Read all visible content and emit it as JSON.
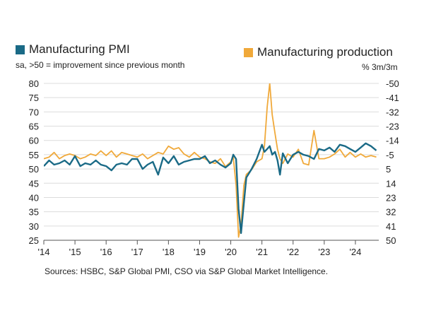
{
  "legend": {
    "left": {
      "label": "Manufacturing PMI",
      "color": "#1a6a86",
      "subtitle": "sa, >50 = improvement since previous month"
    },
    "right": {
      "label": "Manufacturing production",
      "color": "#f0a93a",
      "subtitle": "% 3m/3m"
    }
  },
  "sources": "Sources: HSBC, S&P Global PMI, CSO via S&P Global Market Intelligence.",
  "chart_data": {
    "type": "line",
    "title": "",
    "x_axis": {
      "min": 2014.0,
      "max": 2024.75,
      "tick_labels": [
        "'14",
        "'15",
        "'16",
        "'17",
        "'18",
        "'19",
        "'20",
        "'21",
        "'22",
        "'23",
        "'24"
      ],
      "tick_values": [
        2014,
        2015,
        2016,
        2017,
        2018,
        2019,
        2020,
        2021,
        2022,
        2023,
        2024
      ]
    },
    "y_left": {
      "min": 25,
      "max": 80,
      "ticks": [
        25,
        30,
        35,
        40,
        45,
        50,
        55,
        60,
        65,
        70,
        75,
        80
      ]
    },
    "y_right": {
      "min": -50,
      "max": 50,
      "ticks": [
        "50",
        "41",
        "32",
        "23",
        "14",
        "5",
        "-5",
        "-14",
        "-23",
        "-32",
        "-41",
        "-50"
      ]
    },
    "grid": true,
    "series": [
      {
        "name": "Manufacturing PMI",
        "axis": "left",
        "color": "#1a6a86",
        "points": [
          [
            2014.0,
            51.0
          ],
          [
            2014.17,
            53.0
          ],
          [
            2014.33,
            51.5
          ],
          [
            2014.5,
            52.0
          ],
          [
            2014.67,
            53.0
          ],
          [
            2014.83,
            51.5
          ],
          [
            2015.0,
            54.5
          ],
          [
            2015.17,
            51.0
          ],
          [
            2015.33,
            52.0
          ],
          [
            2015.5,
            51.5
          ],
          [
            2015.67,
            53.0
          ],
          [
            2015.83,
            51.5
          ],
          [
            2016.0,
            51.0
          ],
          [
            2016.17,
            49.5
          ],
          [
            2016.33,
            51.5
          ],
          [
            2016.5,
            52.0
          ],
          [
            2016.67,
            51.5
          ],
          [
            2016.83,
            53.5
          ],
          [
            2017.0,
            53.5
          ],
          [
            2017.17,
            50.0
          ],
          [
            2017.33,
            51.5
          ],
          [
            2017.5,
            52.5
          ],
          [
            2017.67,
            48.0
          ],
          [
            2017.83,
            54.0
          ],
          [
            2018.0,
            52.0
          ],
          [
            2018.17,
            54.5
          ],
          [
            2018.33,
            51.5
          ],
          [
            2018.5,
            52.5
          ],
          [
            2018.67,
            53.0
          ],
          [
            2018.83,
            53.5
          ],
          [
            2019.0,
            53.5
          ],
          [
            2019.17,
            54.5
          ],
          [
            2019.33,
            52.0
          ],
          [
            2019.5,
            53.0
          ],
          [
            2019.67,
            51.5
          ],
          [
            2019.83,
            50.5
          ],
          [
            2020.0,
            52.0
          ],
          [
            2020.08,
            55.0
          ],
          [
            2020.17,
            53.5
          ],
          [
            2020.25,
            36.0
          ],
          [
            2020.33,
            27.5
          ],
          [
            2020.42,
            38.0
          ],
          [
            2020.5,
            47.0
          ],
          [
            2020.67,
            50.0
          ],
          [
            2020.83,
            53.5
          ],
          [
            2021.0,
            58.5
          ],
          [
            2021.08,
            56.0
          ],
          [
            2021.17,
            57.0
          ],
          [
            2021.25,
            58.0
          ],
          [
            2021.33,
            55.0
          ],
          [
            2021.42,
            56.0
          ],
          [
            2021.5,
            53.0
          ],
          [
            2021.58,
            48.0
          ],
          [
            2021.67,
            55.5
          ],
          [
            2021.83,
            52.0
          ],
          [
            2022.0,
            55.0
          ],
          [
            2022.17,
            56.0
          ],
          [
            2022.33,
            55.0
          ],
          [
            2022.5,
            54.5
          ],
          [
            2022.67,
            53.5
          ],
          [
            2022.83,
            57.0
          ],
          [
            2023.0,
            56.5
          ],
          [
            2023.17,
            57.5
          ],
          [
            2023.33,
            56.0
          ],
          [
            2023.5,
            58.5
          ],
          [
            2023.67,
            58.0
          ],
          [
            2023.83,
            57.0
          ],
          [
            2024.0,
            56.0
          ],
          [
            2024.17,
            57.5
          ],
          [
            2024.33,
            59.0
          ],
          [
            2024.5,
            58.0
          ],
          [
            2024.67,
            56.5
          ]
        ]
      },
      {
        "name": "Manufacturing production",
        "axis": "right",
        "color": "#f0a93a",
        "points": [
          [
            2014.0,
            2
          ],
          [
            2014.17,
            3
          ],
          [
            2014.33,
            6
          ],
          [
            2014.5,
            2
          ],
          [
            2014.67,
            4
          ],
          [
            2014.83,
            5
          ],
          [
            2015.0,
            4
          ],
          [
            2015.17,
            2
          ],
          [
            2015.33,
            3
          ],
          [
            2015.5,
            5
          ],
          [
            2015.67,
            4
          ],
          [
            2015.83,
            7
          ],
          [
            2016.0,
            4
          ],
          [
            2016.17,
            7
          ],
          [
            2016.33,
            3
          ],
          [
            2016.5,
            6
          ],
          [
            2016.67,
            5
          ],
          [
            2016.83,
            4
          ],
          [
            2017.0,
            3
          ],
          [
            2017.17,
            5
          ],
          [
            2017.33,
            2
          ],
          [
            2017.5,
            4
          ],
          [
            2017.67,
            6
          ],
          [
            2017.83,
            5
          ],
          [
            2018.0,
            10
          ],
          [
            2018.17,
            8
          ],
          [
            2018.33,
            9
          ],
          [
            2018.5,
            5
          ],
          [
            2018.67,
            3
          ],
          [
            2018.83,
            6
          ],
          [
            2019.0,
            3
          ],
          [
            2019.17,
            2
          ],
          [
            2019.33,
            0
          ],
          [
            2019.5,
            -1
          ],
          [
            2019.67,
            2
          ],
          [
            2019.83,
            -3
          ],
          [
            2020.0,
            0
          ],
          [
            2020.08,
            3
          ],
          [
            2020.17,
            -15
          ],
          [
            2020.25,
            -48
          ],
          [
            2020.33,
            -40
          ],
          [
            2020.42,
            -15
          ],
          [
            2020.5,
            -8
          ],
          [
            2020.67,
            -5
          ],
          [
            2020.83,
            0
          ],
          [
            2021.0,
            2
          ],
          [
            2021.08,
            10
          ],
          [
            2021.17,
            35
          ],
          [
            2021.25,
            50
          ],
          [
            2021.33,
            30
          ],
          [
            2021.42,
            18
          ],
          [
            2021.5,
            8
          ],
          [
            2021.58,
            2
          ],
          [
            2021.67,
            -1
          ],
          [
            2021.83,
            5
          ],
          [
            2022.0,
            3
          ],
          [
            2022.17,
            8
          ],
          [
            2022.33,
            -1
          ],
          [
            2022.5,
            -2
          ],
          [
            2022.67,
            20
          ],
          [
            2022.83,
            2
          ],
          [
            2023.0,
            2
          ],
          [
            2023.17,
            3
          ],
          [
            2023.33,
            5
          ],
          [
            2023.5,
            8
          ],
          [
            2023.67,
            3
          ],
          [
            2023.83,
            6
          ],
          [
            2024.0,
            3
          ],
          [
            2024.17,
            5
          ],
          [
            2024.33,
            3
          ],
          [
            2024.5,
            4
          ],
          [
            2024.67,
            3
          ]
        ]
      }
    ]
  }
}
